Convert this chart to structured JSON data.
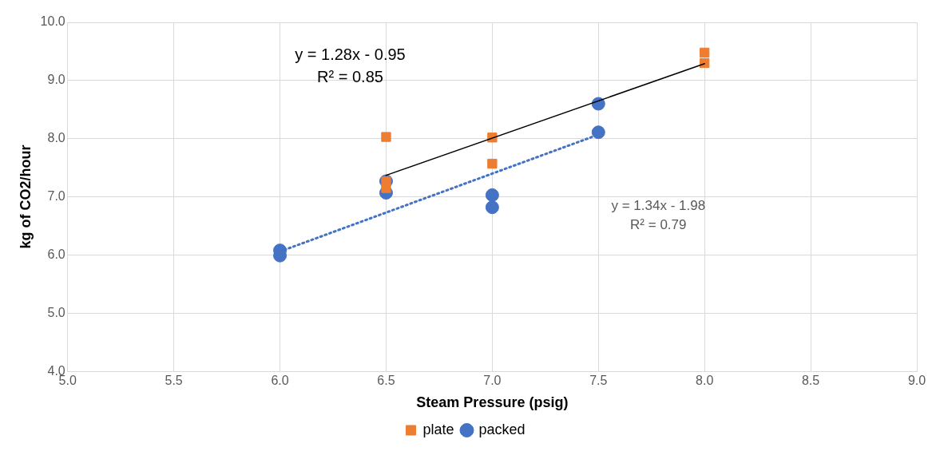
{
  "chart_data": {
    "type": "scatter",
    "xlabel": "Steam Pressure (psig)",
    "ylabel": "kg of CO2/hour",
    "xlim": [
      5,
      9
    ],
    "xticks": [
      {
        "value": 5,
        "label": "5.0"
      },
      {
        "value": 5.5,
        "label": "5.5"
      },
      {
        "value": 6,
        "label": "6.0"
      },
      {
        "value": 6.5,
        "label": "6.5"
      },
      {
        "value": 7,
        "label": "7.0"
      },
      {
        "value": 7.5,
        "label": "7.5"
      },
      {
        "value": 8,
        "label": "8.0"
      },
      {
        "value": 8.5,
        "label": "8.5"
      },
      {
        "value": 9,
        "label": "9.0"
      }
    ],
    "ylim": [
      4,
      10
    ],
    "yticks": [
      {
        "value": 4,
        "label": "4.0"
      },
      {
        "value": 5,
        "label": "5.0"
      },
      {
        "value": 6,
        "label": "6.0"
      },
      {
        "value": 7,
        "label": "7.0"
      },
      {
        "value": 8,
        "label": "8.0"
      },
      {
        "value": 9,
        "label": "9.0"
      },
      {
        "value": 10,
        "label": "10.0"
      }
    ],
    "grid": true,
    "legend": "bottom",
    "series": [
      {
        "name": "plate",
        "marker": "square",
        "color": "#ed7d31",
        "x": [
          6.5,
          6.5,
          6.5,
          7,
          7,
          8,
          8
        ],
        "values": [
          8.03,
          7.27,
          7.15,
          8.02,
          7.57,
          9.48,
          9.3
        ]
      },
      {
        "name": "packed",
        "marker": "circle",
        "color": "#4472c4",
        "x": [
          6,
          6,
          6.5,
          6.5,
          7,
          7,
          7.5,
          7.5
        ],
        "values": [
          6.08,
          5.99,
          7.27,
          7.07,
          7.03,
          6.82,
          8.6,
          8.11
        ]
      },
      {
        "type": "line",
        "marker": "none",
        "line_style": "solid",
        "color": "#000000",
        "x": [
          6.5,
          8
        ],
        "values": [
          7.37,
          9.29
        ]
      },
      {
        "type": "line",
        "marker": "none",
        "line_style": "dotted",
        "color": "#4472c4",
        "x": [
          6,
          7.5
        ],
        "values": [
          6.06,
          8.07
        ]
      }
    ],
    "annotations": [
      "y = 1.28x - 0.95\nR² = 0.85",
      "y = 1.34x - 1.98\nR² = 0.79"
    ]
  }
}
